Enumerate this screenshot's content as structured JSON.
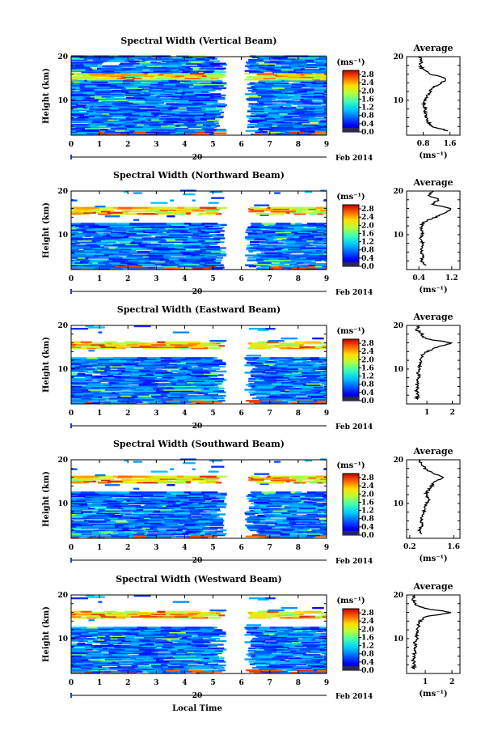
{
  "chart_data": [
    {
      "type": "heatmap",
      "title": "Spectral Width (Vertical Beam)",
      "ylabel": "Height (km)",
      "ylim": [
        2,
        20
      ],
      "xlim": [
        0,
        9
      ],
      "x_ticks": [
        "0",
        "1",
        "2",
        "3",
        "4",
        "5",
        "6",
        "7",
        "8",
        "9"
      ],
      "y_ticks": [
        "20",
        "10"
      ],
      "date_label": "20",
      "month_label": "Feb 2014",
      "data_gap_hours": [
        5.5,
        6.1
      ],
      "colorbar": {
        "unit": "(ms⁻¹)",
        "ticks": [
          "0.0",
          "0.4",
          "0.8",
          "1.2",
          "1.6",
          "2.0",
          "2.4",
          "2.8"
        ],
        "range": [
          0.0,
          3.0
        ]
      },
      "profile": {
        "title": "Average",
        "xlabel": "(ms⁻¹)",
        "x_ticks": [
          "0.8",
          "1.6"
        ],
        "xlim": [
          0.3,
          1.9
        ],
        "y_ticks": [
          "20",
          "10"
        ],
        "heights": [
          3,
          4,
          5,
          6,
          7,
          8,
          9,
          10,
          11,
          12,
          13,
          14,
          15,
          16,
          17,
          18,
          19,
          20
        ],
        "values": [
          1.55,
          1.05,
          0.95,
          0.9,
          0.85,
          0.88,
          0.8,
          0.85,
          0.9,
          1.0,
          1.1,
          1.35,
          1.5,
          1.0,
          0.8,
          0.7,
          0.75,
          0.7
        ]
      }
    },
    {
      "type": "heatmap",
      "title": "Spectral Width (Northward Beam)",
      "ylabel": "Height (km)",
      "ylim": [
        2,
        20
      ],
      "xlim": [
        0,
        9
      ],
      "x_ticks": [
        "0",
        "1",
        "2",
        "3",
        "4",
        "5",
        "6",
        "7",
        "8",
        "9"
      ],
      "y_ticks": [
        "20",
        "10"
      ],
      "date_label": "20",
      "month_label": "Feb 2014",
      "data_gap_hours": [
        5.5,
        6.1
      ],
      "colorbar": {
        "unit": "(ms⁻¹)",
        "ticks": [
          "0.0",
          "0.4",
          "0.8",
          "1.2",
          "1.6",
          "2.0",
          "2.4",
          "2.8"
        ],
        "range": [
          0.0,
          3.0
        ]
      },
      "profile": {
        "title": "Average",
        "xlabel": "(ms⁻¹)",
        "x_ticks": [
          "0.4",
          "1.2"
        ],
        "xlim": [
          0.1,
          1.4
        ],
        "y_ticks": [
          "20",
          "10"
        ],
        "heights": [
          3,
          4,
          5,
          6,
          7,
          8,
          9,
          10,
          11,
          12,
          13,
          14,
          15,
          16,
          17,
          18,
          19,
          20
        ],
        "values": [
          0.55,
          0.45,
          0.5,
          0.45,
          0.48,
          0.5,
          0.45,
          0.5,
          0.45,
          0.45,
          0.55,
          0.8,
          1.05,
          1.2,
          0.7,
          0.9,
          0.65,
          0.75
        ]
      }
    },
    {
      "type": "heatmap",
      "title": "Spectral Width (Eastward Beam)",
      "ylabel": "Height (km)",
      "ylim": [
        2,
        20
      ],
      "xlim": [
        0,
        9
      ],
      "x_ticks": [
        "0",
        "1",
        "2",
        "3",
        "4",
        "5",
        "6",
        "7",
        "8",
        "9"
      ],
      "y_ticks": [
        "20",
        "10"
      ],
      "date_label": "20",
      "month_label": "Feb 2014",
      "data_gap_hours": [
        5.5,
        6.1
      ],
      "colorbar": {
        "unit": "(ms⁻¹)",
        "ticks": [
          "0.0",
          "0.4",
          "0.8",
          "1.2",
          "1.6",
          "2.0",
          "2.4",
          "2.8"
        ],
        "range": [
          0.0,
          3.0
        ]
      },
      "profile": {
        "title": "Average",
        "xlabel": "",
        "x_ticks": [
          "1",
          "2"
        ],
        "xlim": [
          0.2,
          2.3
        ],
        "y_ticks": [
          "20",
          "10"
        ],
        "heights": [
          3,
          4,
          5,
          6,
          7,
          8,
          9,
          10,
          11,
          12,
          13,
          14,
          15,
          16,
          17,
          18,
          19,
          20
        ],
        "values": [
          0.6,
          0.65,
          0.6,
          0.65,
          0.6,
          0.7,
          0.65,
          0.7,
          0.7,
          0.75,
          0.8,
          1.0,
          1.4,
          2.0,
          0.9,
          0.8,
          0.6,
          0.7
        ]
      }
    },
    {
      "type": "heatmap",
      "title": "Spectral Width (Southward Beam)",
      "ylabel": "Height (km)",
      "ylim": [
        2,
        20
      ],
      "xlim": [
        0,
        9
      ],
      "x_ticks": [
        "0",
        "1",
        "2",
        "3",
        "4",
        "5",
        "6",
        "7",
        "8",
        "9"
      ],
      "y_ticks": [
        "20",
        "10"
      ],
      "date_label": "20",
      "month_label": "Feb 2014",
      "data_gap_hours": [
        5.5,
        6.1
      ],
      "colorbar": {
        "unit": "(ms⁻¹)",
        "ticks": [
          "0.0",
          "0.4",
          "0.8",
          "1.2",
          "1.6",
          "2.0",
          "2.4",
          "2.8"
        ],
        "range": [
          0.0,
          3.0
        ]
      },
      "profile": {
        "title": "Average",
        "xlabel": "(ms⁻¹)",
        "x_ticks": [
          "0.2",
          "1.6"
        ],
        "xlim": [
          0.1,
          1.8
        ],
        "y_ticks": [
          "20",
          "10"
        ],
        "heights": [
          3,
          4,
          5,
          6,
          7,
          8,
          9,
          10,
          11,
          12,
          13,
          14,
          15,
          16,
          17,
          18,
          19,
          20
        ],
        "values": [
          0.55,
          0.5,
          0.6,
          0.55,
          0.6,
          0.65,
          0.7,
          0.75,
          0.8,
          0.7,
          0.8,
          0.9,
          1.0,
          1.3,
          0.9,
          0.7,
          0.6,
          0.5
        ]
      }
    },
    {
      "type": "heatmap",
      "title": "Spectral Width (Westward Beam)",
      "ylabel": "Height (km)",
      "ylim": [
        2,
        20
      ],
      "xlim": [
        0,
        9
      ],
      "x_ticks": [
        "0",
        "1",
        "2",
        "3",
        "4",
        "5",
        "6",
        "7",
        "8",
        "9"
      ],
      "y_ticks": [
        "20",
        "10"
      ],
      "date_label": "20",
      "month_label": "Feb 2014",
      "xlabel": "Local Time",
      "data_gap_hours": [
        5.5,
        6.1
      ],
      "colorbar": {
        "unit": "(ms⁻¹)",
        "ticks": [
          "0.0",
          "0.4",
          "0.8",
          "1.2",
          "1.6",
          "2.0",
          "2.4",
          "2.8"
        ],
        "range": [
          0.0,
          3.0
        ]
      },
      "profile": {
        "title": "Average",
        "xlabel": "(ms⁻¹)",
        "x_ticks": [
          "1",
          "2"
        ],
        "xlim": [
          0.3,
          2.3
        ],
        "y_ticks": [
          "20",
          "10"
        ],
        "heights": [
          3,
          4,
          5,
          6,
          7,
          8,
          9,
          10,
          11,
          12,
          13,
          14,
          15,
          16,
          17,
          18,
          19,
          20
        ],
        "values": [
          0.55,
          0.6,
          0.55,
          0.6,
          0.6,
          0.65,
          0.6,
          0.7,
          0.65,
          0.7,
          0.75,
          0.8,
          1.0,
          2.0,
          0.9,
          0.6,
          0.55,
          0.6
        ]
      }
    }
  ]
}
